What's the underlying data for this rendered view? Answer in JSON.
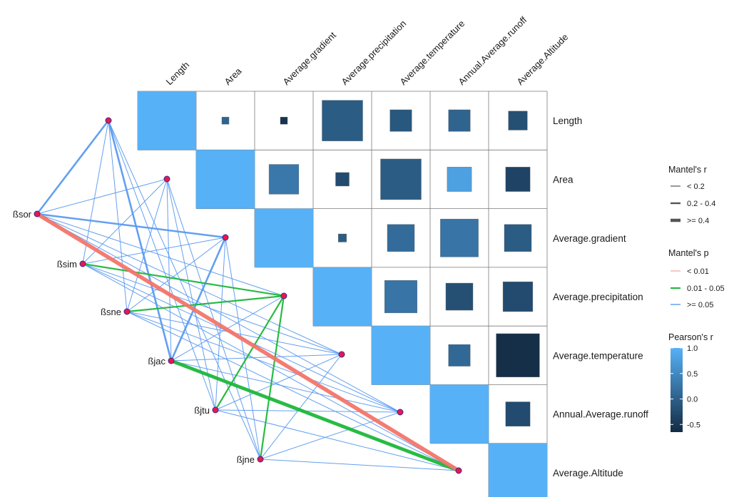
{
  "chart_data": {
    "type": "heatmap",
    "variables": [
      "Length",
      "Area",
      "Average.gradient",
      "Average.precipitation",
      "Average.temperature",
      "Annual.Average.runoff",
      "Average.Altitude"
    ],
    "pearson_r": [
      [
        1.0,
        0.05,
        -0.55,
        -0.05,
        -0.1,
        0.05,
        -0.2
      ],
      [
        null,
        1.0,
        0.3,
        -0.25,
        -0.05,
        0.8,
        -0.35
      ],
      [
        null,
        null,
        1.0,
        -0.05,
        0.15,
        0.25,
        -0.05
      ],
      [
        null,
        null,
        null,
        1.0,
        0.25,
        -0.2,
        -0.25
      ],
      [
        null,
        null,
        null,
        null,
        1.0,
        0.1,
        -0.6
      ],
      [
        null,
        null,
        null,
        null,
        null,
        1.0,
        -0.25
      ],
      [
        null,
        null,
        null,
        null,
        null,
        null,
        1.0
      ]
    ],
    "abs_r_scale": [
      0.1,
      0.1,
      0.75,
      0.4,
      0.4,
      0.35,
      0.55,
      0.25,
      0.75,
      0.45,
      0.45,
      0.15,
      0.5,
      0.7,
      0.5,
      0.6,
      0.5,
      0.55,
      0.4,
      0.8,
      0.45
    ],
    "beta_nodes": [
      "ßsor",
      "ßsim",
      "ßsne",
      "ßjac",
      "ßjtu",
      "ßjne"
    ],
    "mantel_links": [
      {
        "from": "ßsor",
        "to": "Average.Altitude",
        "r_class": "0.2 - 0.4",
        "p_class": "< 0.01"
      },
      {
        "from": "ßsim",
        "to": "Average.precipitation",
        "r_class": "< 0.2",
        "p_class": "0.01 - 0.05"
      },
      {
        "from": "ßsne",
        "to": "Average.precipitation",
        "r_class": "< 0.2",
        "p_class": "0.01 - 0.05"
      },
      {
        "from": "ßjac",
        "to": "Average.Altitude",
        "r_class": "0.2 - 0.4",
        "p_class": "0.01 - 0.05"
      },
      {
        "from": "ßjtu",
        "to": "Average.precipitation",
        "r_class": "< 0.2",
        "p_class": "0.01 - 0.05"
      },
      {
        "from": "ßjne",
        "to": "Average.precipitation",
        "r_class": "< 0.2",
        "p_class": "0.01 - 0.05"
      },
      {
        "from": "ßsor",
        "to": "Length",
        "r_class": "0.2 - 0.4",
        "p_class": ">= 0.05"
      },
      {
        "from": "ßsor",
        "to": "Average.gradient",
        "r_class": "0.2 - 0.4",
        "p_class": ">= 0.05"
      },
      {
        "from": "ßsor",
        "to": "Area",
        "r_class": "< 0.2",
        "p_class": ">= 0.05"
      },
      {
        "from": "ßsor",
        "to": "Average.precipitation",
        "r_class": "< 0.2",
        "p_class": ">= 0.05"
      },
      {
        "from": "ßsor",
        "to": "Average.temperature",
        "r_class": "< 0.2",
        "p_class": ">= 0.05"
      },
      {
        "from": "ßsor",
        "to": "Annual.Average.runoff",
        "r_class": "< 0.2",
        "p_class": ">= 0.05"
      },
      {
        "from": "ßsim",
        "to": "Length",
        "r_class": "< 0.2",
        "p_class": ">= 0.05"
      },
      {
        "from": "ßsim",
        "to": "Area",
        "r_class": "< 0.2",
        "p_class": ">= 0.05"
      },
      {
        "from": "ßsim",
        "to": "Average.gradient",
        "r_class": "< 0.2",
        "p_class": ">= 0.05"
      },
      {
        "from": "ßsim",
        "to": "Average.temperature",
        "r_class": "< 0.2",
        "p_class": ">= 0.05"
      },
      {
        "from": "ßsim",
        "to": "Annual.Average.runoff",
        "r_class": "< 0.2",
        "p_class": ">= 0.05"
      },
      {
        "from": "ßsim",
        "to": "Average.Altitude",
        "r_class": "< 0.2",
        "p_class": ">= 0.05"
      },
      {
        "from": "ßsne",
        "to": "Length",
        "r_class": "< 0.2",
        "p_class": ">= 0.05"
      },
      {
        "from": "ßsne",
        "to": "Area",
        "r_class": "< 0.2",
        "p_class": ">= 0.05"
      },
      {
        "from": "ßsne",
        "to": "Average.gradient",
        "r_class": "< 0.2",
        "p_class": ">= 0.05"
      },
      {
        "from": "ßsne",
        "to": "Average.temperature",
        "r_class": "< 0.2",
        "p_class": ">= 0.05"
      },
      {
        "from": "ßsne",
        "to": "Annual.Average.runoff",
        "r_class": "< 0.2",
        "p_class": ">= 0.05"
      },
      {
        "from": "ßsne",
        "to": "Average.Altitude",
        "r_class": "< 0.2",
        "p_class": ">= 0.05"
      },
      {
        "from": "ßjac",
        "to": "Length",
        "r_class": "0.2 - 0.4",
        "p_class": ">= 0.05"
      },
      {
        "from": "ßjac",
        "to": "Area",
        "r_class": "< 0.2",
        "p_class": ">= 0.05"
      },
      {
        "from": "ßjac",
        "to": "Average.gradient",
        "r_class": "0.2 - 0.4",
        "p_class": ">= 0.05"
      },
      {
        "from": "ßjac",
        "to": "Average.precipitation",
        "r_class": "< 0.2",
        "p_class": ">= 0.05"
      },
      {
        "from": "ßjac",
        "to": "Average.temperature",
        "r_class": "< 0.2",
        "p_class": ">= 0.05"
      },
      {
        "from": "ßjac",
        "to": "Annual.Average.runoff",
        "r_class": "< 0.2",
        "p_class": ">= 0.05"
      },
      {
        "from": "ßjtu",
        "to": "Length",
        "r_class": "< 0.2",
        "p_class": ">= 0.05"
      },
      {
        "from": "ßjtu",
        "to": "Area",
        "r_class": "< 0.2",
        "p_class": ">= 0.05"
      },
      {
        "from": "ßjtu",
        "to": "Average.gradient",
        "r_class": "< 0.2",
        "p_class": ">= 0.05"
      },
      {
        "from": "ßjtu",
        "to": "Average.temperature",
        "r_class": "< 0.2",
        "p_class": ">= 0.05"
      },
      {
        "from": "ßjtu",
        "to": "Annual.Average.runoff",
        "r_class": "< 0.2",
        "p_class": ">= 0.05"
      },
      {
        "from": "ßjtu",
        "to": "Average.Altitude",
        "r_class": "< 0.2",
        "p_class": ">= 0.05"
      },
      {
        "from": "ßjne",
        "to": "Length",
        "r_class": "< 0.2",
        "p_class": ">= 0.05"
      },
      {
        "from": "ßjne",
        "to": "Area",
        "r_class": "< 0.2",
        "p_class": ">= 0.05"
      },
      {
        "from": "ßjne",
        "to": "Average.gradient",
        "r_class": "< 0.2",
        "p_class": ">= 0.05"
      },
      {
        "from": "ßjne",
        "to": "Average.temperature",
        "r_class": "< 0.2",
        "p_class": ">= 0.05"
      },
      {
        "from": "ßjne",
        "to": "Annual.Average.runoff",
        "r_class": "< 0.2",
        "p_class": ">= 0.05"
      },
      {
        "from": "ßjne",
        "to": "Average.Altitude",
        "r_class": "< 0.2",
        "p_class": ">= 0.05"
      }
    ],
    "legend": {
      "mantel_r": {
        "title": "Mantel's r",
        "entries": [
          "< 0.2",
          "0.2 - 0.4",
          ">= 0.4"
        ]
      },
      "mantel_p": {
        "title": "Mantel's p",
        "entries": [
          "< 0.01",
          "0.01 - 0.05",
          ">= 0.05"
        ],
        "colors": [
          "#f4756b",
          "#1db83a",
          "#5b9bf0"
        ]
      },
      "pearson_r": {
        "title": "Pearson's r",
        "ticks": [
          "1.0",
          "0.5",
          "0.0",
          "-0.5"
        ],
        "tick_values": [
          1.0,
          0.5,
          0.0,
          -0.5
        ],
        "range": [
          -0.65,
          1.0
        ],
        "colors": [
          "#132b43",
          "#56b1f7"
        ]
      },
      "placement": "right"
    },
    "grid": true
  }
}
